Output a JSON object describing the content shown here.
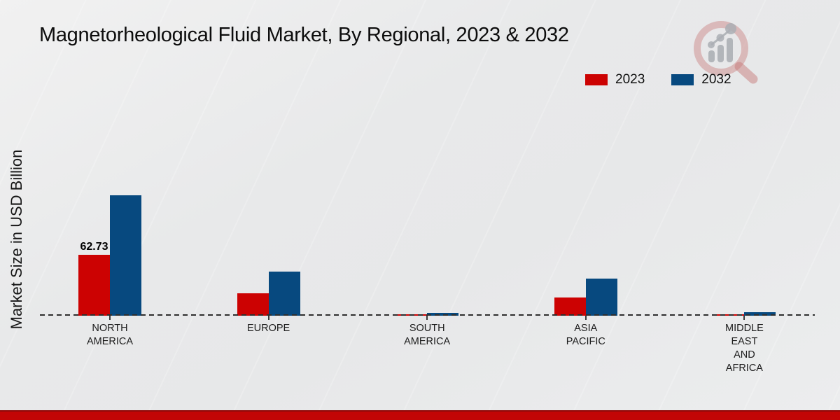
{
  "title": "Magnetorheological Fluid Market, By Regional, 2023 & 2032",
  "y_axis_label": "Market Size in USD Billion",
  "colors": {
    "series_2023": "#cc0202",
    "series_2032": "#07497f",
    "footer_bar": "#c20505",
    "baseline": "#2e2e2e",
    "background": "#e9eaeb"
  },
  "legend": {
    "items": [
      {
        "label": "2023"
      },
      {
        "label": "2032"
      }
    ]
  },
  "chart_data": {
    "type": "bar",
    "title": "Magnetorheological Fluid Market, By Regional, 2023 & 2032",
    "xlabel": "",
    "ylabel": "Market Size in USD Billion",
    "categories": [
      "North America",
      "Europe",
      "South America",
      "Asia Pacific",
      "Middle East and Africa"
    ],
    "category_display_lines": [
      [
        "NORTH",
        "AMERICA"
      ],
      [
        "EUROPE"
      ],
      [
        "SOUTH",
        "AMERICA"
      ],
      [
        "ASIA",
        "PACIFIC"
      ],
      [
        "MIDDLE",
        "EAST",
        "AND",
        "AFRICA"
      ]
    ],
    "series": [
      {
        "name": "2023",
        "color": "#cc0202",
        "values": [
          62.73,
          23.1,
          1.8,
          18.7,
          1.8
        ]
      },
      {
        "name": "2032",
        "color": "#07497f",
        "values": [
          124.0,
          45.4,
          3.2,
          38.2,
          3.6
        ]
      }
    ],
    "data_labels": [
      {
        "series": "2023",
        "category": "North America",
        "text": "62.73"
      }
    ],
    "ylim": [
      0,
      130
    ],
    "grid": false,
    "legend_position": "top-right",
    "baseline_style": "dashed"
  },
  "watermark": {
    "name": "market-research-future-logo-watermark"
  }
}
